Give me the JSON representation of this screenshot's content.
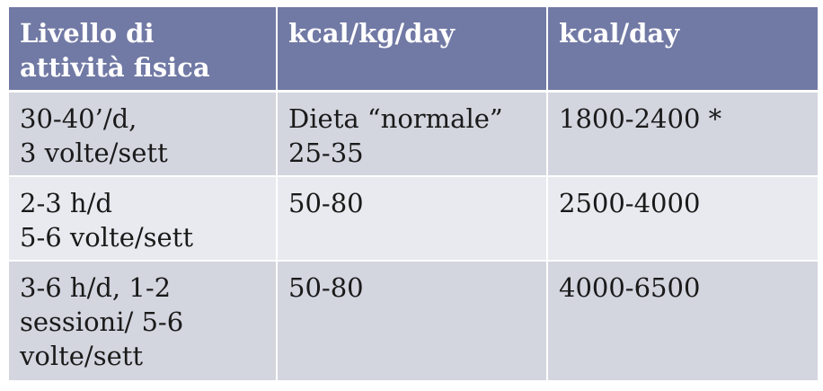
{
  "table": {
    "headers": [
      [
        "Livello di",
        "attività fisica"
      ],
      [
        "kcal/kg/day"
      ],
      [
        "kcal/day"
      ]
    ],
    "rows": [
      [
        [
          "30-40’/d,",
          "3 volte/sett"
        ],
        [
          "Dieta “normale”",
          "25-35"
        ],
        [
          "1800-2400 *"
        ]
      ],
      [
        [
          "2-3 h/d",
          "5-6 volte/sett"
        ],
        [
          "50-80"
        ],
        [
          "2500-4000"
        ]
      ],
      [
        [
          "3-6 h/d, 1-2",
          "sessioni/ 5-6",
          "volte/sett"
        ],
        [
          "50-80"
        ],
        [
          "4000-6500"
        ]
      ]
    ]
  },
  "colors": {
    "header_bg": "#7179a5",
    "header_text": "#ffffff",
    "row_odd_bg": "#d3d5df",
    "row_even_bg": "#e9eaef",
    "body_text": "#1a1a1a"
  }
}
